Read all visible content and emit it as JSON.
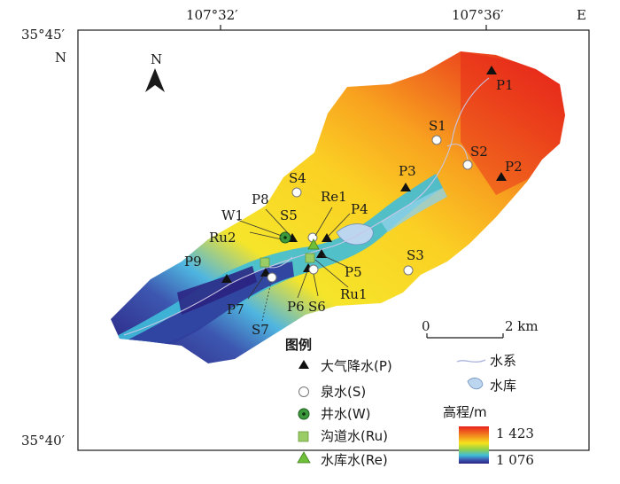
{
  "map": {
    "coords": {
      "top_left_lat": "35°45′",
      "bottom_left_lat": "35°40′",
      "lon_left": "107°32′",
      "lon_right": "107°36′",
      "north_letter": "N",
      "east_letter": "E"
    },
    "north_arrow": {
      "label": "N"
    },
    "scale_bar": {
      "zero": "0",
      "end": "2 km"
    },
    "sample_labels": [
      "P1",
      "S1",
      "S2",
      "P2",
      "P3",
      "S4",
      "P8",
      "Re1",
      "P4",
      "W1",
      "S5",
      "Ru2",
      "S3",
      "P9",
      "P5",
      "Ru1",
      "P7",
      "P6",
      "S6",
      "S7"
    ],
    "legend": {
      "title": "图例",
      "items": [
        {
          "symbol": "triangle",
          "label": "大气降水(P)"
        },
        {
          "symbol": "circle",
          "label": "泉水(S)"
        },
        {
          "symbol": "well",
          "label": "井水(W)"
        },
        {
          "symbol": "square",
          "label": "沟道水(Ru)"
        },
        {
          "symbol": "green-triangle",
          "label": "水库水(Re)"
        }
      ],
      "water_system": "水系",
      "reservoir": "水库",
      "elevation_title": "高程/m",
      "elev_max": "1 423",
      "elev_min": "1 076"
    },
    "colors": {
      "high": "#e8211c",
      "orange": "#f38b1f",
      "yellow": "#f6e21c",
      "green": "#8fd14b",
      "cyan": "#3fbcd9",
      "blue": "#3d57b0",
      "low": "#2a207f"
    }
  }
}
